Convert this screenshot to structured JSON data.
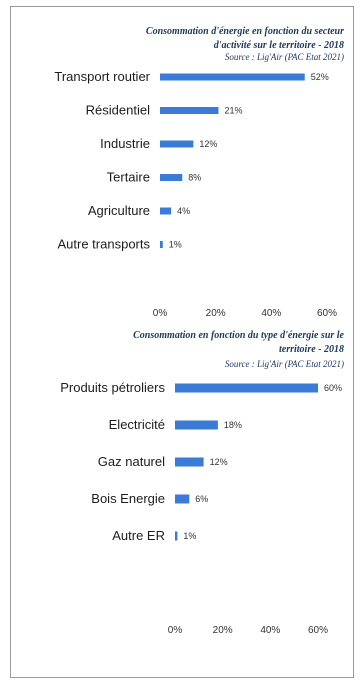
{
  "chart_data": [
    {
      "type": "bar",
      "orientation": "horizontal",
      "title": "Consommation d'énergie en fonction du secteur d'activité sur le territoire - 2018",
      "source": "Source : Lig'Air (PAC Etat 2021)",
      "categories": [
        "Transport routier",
        "Résidentiel",
        "Industrie",
        "Tertaire",
        "Agriculture",
        "Autre transports"
      ],
      "values": [
        52,
        21,
        12,
        8,
        4,
        1
      ],
      "value_labels": [
        "52%",
        "21%",
        "12%",
        "8%",
        "4%",
        "1%"
      ],
      "xlim": [
        0,
        60
      ],
      "xticks": [
        "0%",
        "20%",
        "40%",
        "60%"
      ],
      "bar_color": "#3a7bd5",
      "grid": false
    },
    {
      "type": "bar",
      "orientation": "horizontal",
      "title": "Consommation en fonction du type d'énergie sur le territoire - 2018",
      "source": "Source : Lig'Air (PAC Etat 2021)",
      "categories": [
        "Produits pétroliers",
        "Electricité",
        "Gaz naturel",
        "Bois Energie",
        "Autre ER"
      ],
      "values": [
        60,
        18,
        12,
        6,
        1
      ],
      "value_labels": [
        "60%",
        "18%",
        "12%",
        "6%",
        "1%"
      ],
      "xlim": [
        0,
        60
      ],
      "xticks": [
        "0%",
        "20%",
        "40%",
        "60%"
      ],
      "bar_color": "#3a7bd5",
      "grid": false
    }
  ]
}
